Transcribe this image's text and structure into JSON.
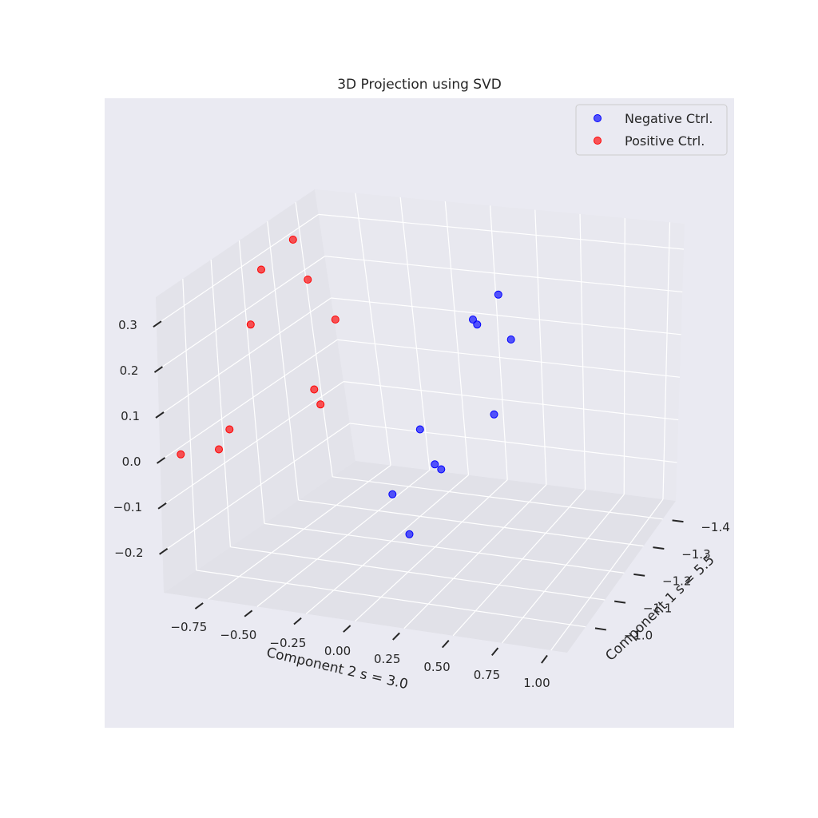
{
  "colors": {
    "figure_bg": "#ffffff",
    "axes_bg": "#eaeaf2",
    "pane_left": "#e3e3ea",
    "pane_right": "#e8e8ef",
    "pane_floor": "#e1e1e8",
    "grid": "#ffffff",
    "text": "#262626"
  },
  "chart_data": {
    "type": "scatter",
    "projection": "3d",
    "title": "3D Projection using SVD",
    "xlabel": "Component 1 s = 5.5",
    "ylabel": "Component 2 s = 3.0",
    "zlabel": "",
    "x_ticks": [
      "−1.0",
      "−1.1",
      "−1.2",
      "−1.3",
      "−1.4"
    ],
    "y_ticks": [
      "−0.75",
      "−0.50",
      "−0.25",
      "0.00",
      "0.25",
      "0.50",
      "0.75",
      "1.00"
    ],
    "z_ticks": [
      "0.3",
      "0.2",
      "0.1",
      "0.0",
      "−0.1",
      "−0.2"
    ],
    "grid": true,
    "legend": {
      "position": "top-right",
      "entries": [
        {
          "label": "Negative Ctrl.",
          "color": "#0000ff"
        },
        {
          "label": "Positive Ctrl.",
          "color": "#ff0000"
        }
      ]
    },
    "series": [
      {
        "name": "Negative Ctrl.",
        "color": "#0000ff",
        "points": [
          {
            "s": 0.72,
            "z": 0.25
          },
          {
            "s": 0.6,
            "z": 0.2
          },
          {
            "s": 0.62,
            "z": 0.19
          },
          {
            "s": 0.78,
            "z": 0.16
          },
          {
            "s": 0.7,
            "z": 0.01
          },
          {
            "s": 0.35,
            "z": -0.02
          },
          {
            "s": 0.42,
            "z": -0.09
          },
          {
            "s": 0.45,
            "z": -0.1
          },
          {
            "s": 0.22,
            "z": -0.15
          },
          {
            "s": 0.3,
            "z": -0.23
          }
        ]
      },
      {
        "name": "Positive Ctrl.",
        "color": "#ff0000",
        "points": [
          {
            "s": -0.25,
            "z": 0.36
          },
          {
            "s": -0.4,
            "z": 0.3
          },
          {
            "s": -0.18,
            "z": 0.28
          },
          {
            "s": -0.05,
            "z": 0.2
          },
          {
            "s": -0.45,
            "z": 0.19
          },
          {
            "s": -0.15,
            "z": 0.06
          },
          {
            "s": -0.12,
            "z": 0.03
          },
          {
            "s": -0.55,
            "z": -0.02
          },
          {
            "s": -0.6,
            "z": -0.06
          },
          {
            "s": -0.78,
            "z": -0.07
          }
        ]
      }
    ]
  }
}
